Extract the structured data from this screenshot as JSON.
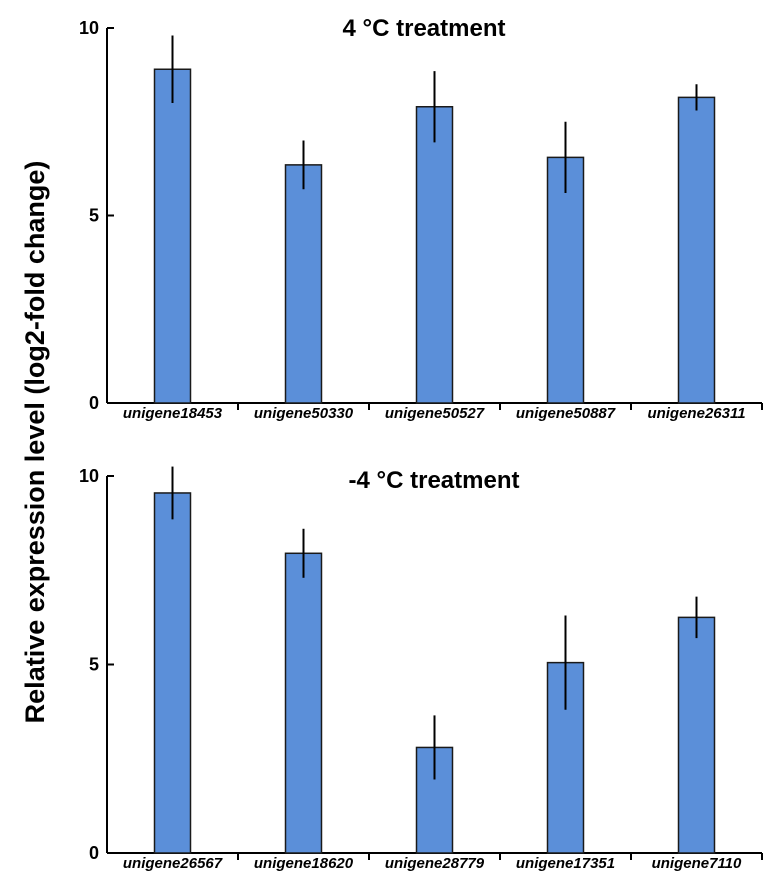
{
  "figure": {
    "ylabel": "Relative expression level (log2-fold change)"
  },
  "style": {
    "bar_fill": "#5b8fd9",
    "bar_stroke": "#1a1a1a",
    "axis_color": "#000000"
  },
  "chart_data": [
    {
      "type": "bar",
      "title": "4 °C treatment",
      "xlabel": "",
      "ylabel": "Relative expression level (log2-fold change)",
      "ylim": [
        0,
        10
      ],
      "yticks": [
        "0",
        "5",
        "10"
      ],
      "grid": false,
      "categories": [
        "unigene18453",
        "unigene50330",
        "unigene50527",
        "unigene50887",
        "unigene26311"
      ],
      "values": [
        8.9,
        6.35,
        7.9,
        6.55,
        8.15
      ],
      "errors": [
        0.9,
        0.65,
        0.95,
        0.95,
        0.35
      ]
    },
    {
      "type": "bar",
      "title": "-4 °C treatment",
      "xlabel": "",
      "ylabel": "Relative expression level (log2-fold change)",
      "ylim": [
        0,
        10
      ],
      "yticks": [
        "0",
        "5",
        "10"
      ],
      "grid": false,
      "categories": [
        "unigene26567",
        "unigene18620",
        "unigene28779",
        "unigene17351",
        "unigene7110"
      ],
      "values": [
        9.55,
        7.95,
        2.8,
        5.05,
        6.25
      ],
      "errors": [
        0.7,
        0.65,
        0.85,
        1.25,
        0.55
      ]
    }
  ]
}
